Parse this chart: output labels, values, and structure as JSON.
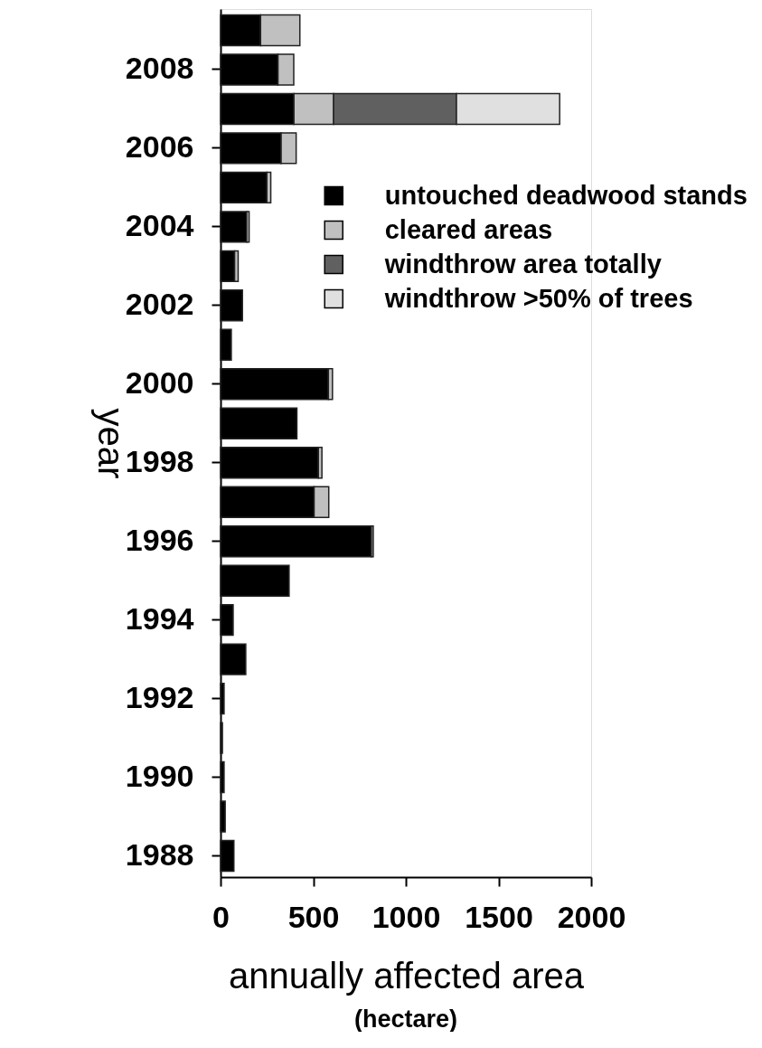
{
  "chart_data": {
    "type": "bar",
    "orientation": "horizontal",
    "stacked": true,
    "categories": [
      null,
      "2008",
      null,
      "2006",
      null,
      "2004",
      null,
      "2002",
      null,
      "2000",
      null,
      "1998",
      null,
      "1996",
      null,
      "1994",
      null,
      "1992",
      null,
      "1990",
      null,
      "1988"
    ],
    "series": [
      {
        "name": "untouched deadwood stands",
        "color": "#000000",
        "values": [
          216,
          310,
          396,
          327,
          250,
          141,
          76,
          118,
          58,
          582,
          412,
          528,
          505,
          814,
          370,
          68,
          136,
          19,
          10,
          19,
          25,
          72
        ]
      },
      {
        "name": "cleared areas",
        "color": "#c0c0c0",
        "values": [
          212,
          85,
          214,
          81,
          21,
          13,
          19,
          null,
          null,
          22,
          null,
          19,
          79,
          10,
          null,
          null,
          null,
          null,
          null,
          null,
          null,
          null
        ]
      },
      {
        "name": "windthrow area totally",
        "color": "#606060",
        "values": [
          null,
          null,
          663,
          null,
          null,
          null,
          null,
          null,
          null,
          null,
          null,
          null,
          null,
          null,
          null,
          null,
          null,
          null,
          null,
          null,
          null,
          null
        ]
      },
      {
        "name": "windthrow >50% of trees",
        "color": "#e0e0e0",
        "values": [
          null,
          null,
          557,
          null,
          null,
          null,
          null,
          null,
          null,
          null,
          null,
          null,
          null,
          null,
          null,
          null,
          null,
          null,
          null,
          null,
          null,
          null
        ]
      }
    ],
    "xlim": [
      0,
      2000
    ],
    "xticks": [
      0,
      500,
      {
        "value": 1000,
        "label": "1000"
      },
      {
        "value": 1500,
        "label": "1500"
      },
      {
        "value": 2000,
        "label": "2000"
      }
    ],
    "xlabel": "annually affected area",
    "ylabel": "year",
    "annotations": [
      "(hectare)"
    ],
    "legend": "top right",
    "grid": false
  }
}
